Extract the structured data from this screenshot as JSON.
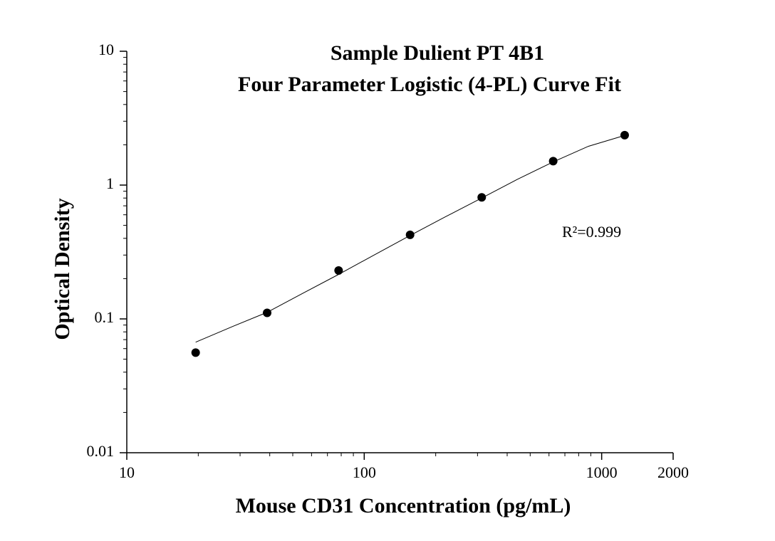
{
  "chart_data": {
    "type": "scatter",
    "title": "Sample Dulient PT 4B1",
    "subtitle": "Four Parameter Logistic (4-PL) Curve Fit",
    "x_label": "Mouse CD31 Concentration (pg/mL)",
    "y_label": "Optical Density",
    "annotation": "R²=0.999",
    "x_scale": "log",
    "y_scale": "log",
    "xlim": [
      10,
      2000
    ],
    "ylim": [
      0.01,
      10
    ],
    "xticks": [
      10,
      100,
      1000,
      2000
    ],
    "yticks": [
      0.01,
      0.1,
      1,
      10
    ],
    "series": [
      {
        "name": null,
        "kind": "points",
        "color": "#000000",
        "x": [
          19.5,
          39,
          78,
          156,
          312.5,
          625,
          1250
        ],
        "values": [
          0.056,
          0.111,
          0.23,
          0.425,
          0.81,
          1.51,
          2.36
        ]
      },
      {
        "name": null,
        "kind": "line",
        "color": "#000000",
        "x": [
          19.5,
          28,
          39,
          55,
          78,
          110,
          156,
          220,
          312.5,
          440,
          625,
          880,
          1250
        ],
        "values": [
          0.067,
          0.088,
          0.112,
          0.155,
          0.215,
          0.3,
          0.42,
          0.58,
          0.8,
          1.1,
          1.49,
          1.95,
          2.35
        ]
      }
    ]
  }
}
